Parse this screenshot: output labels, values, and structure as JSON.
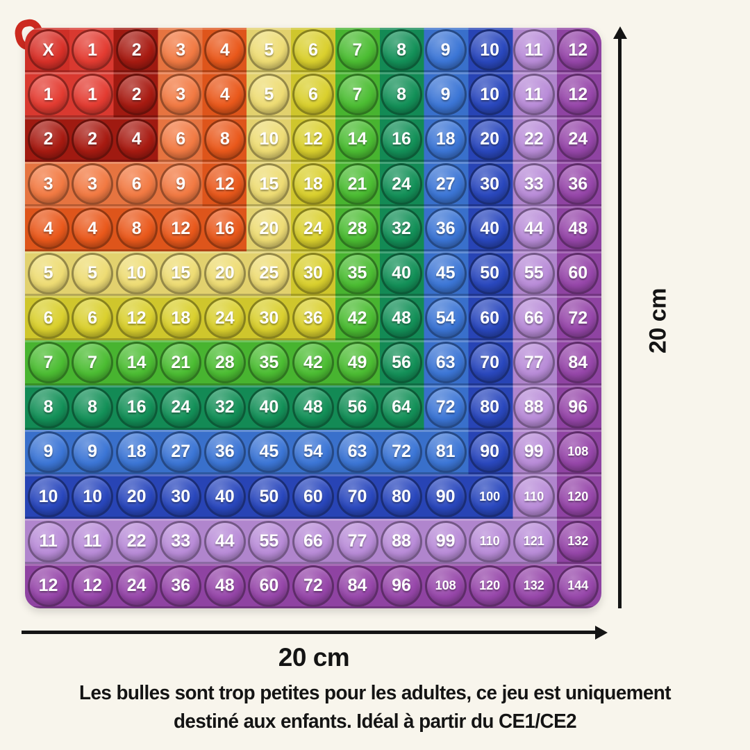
{
  "background_color": "#F8F5EC",
  "board": {
    "description": "rainbow pop-it multiplication table 12x12",
    "bubble_text_color": "#FFFFFF",
    "palette": [
      "#D93129",
      "#E43C32",
      "#A81B12",
      "#F27A43",
      "#EA591C",
      "#EEDC74",
      "#DAD02E",
      "#4CBD33",
      "#149159",
      "#3C76D6",
      "#2A48BE",
      "#B98CD8",
      "#9747AA"
    ],
    "cells": [
      [
        "X",
        "1",
        "2",
        "3",
        "4",
        "5",
        "6",
        "7",
        "8",
        "9",
        "10",
        "11",
        "12"
      ],
      [
        "1",
        "1",
        "2",
        "3",
        "4",
        "5",
        "6",
        "7",
        "8",
        "9",
        "10",
        "11",
        "12"
      ],
      [
        "2",
        "2",
        "4",
        "6",
        "8",
        "10",
        "12",
        "14",
        "16",
        "18",
        "20",
        "22",
        "24"
      ],
      [
        "3",
        "3",
        "6",
        "9",
        "12",
        "15",
        "18",
        "21",
        "24",
        "27",
        "30",
        "33",
        "36"
      ],
      [
        "4",
        "4",
        "8",
        "12",
        "16",
        "20",
        "24",
        "28",
        "32",
        "36",
        "40",
        "44",
        "48"
      ],
      [
        "5",
        "5",
        "10",
        "15",
        "20",
        "25",
        "30",
        "35",
        "40",
        "45",
        "50",
        "55",
        "60"
      ],
      [
        "6",
        "6",
        "12",
        "18",
        "24",
        "30",
        "36",
        "42",
        "48",
        "54",
        "60",
        "66",
        "72"
      ],
      [
        "7",
        "7",
        "14",
        "21",
        "28",
        "35",
        "42",
        "49",
        "56",
        "63",
        "70",
        "77",
        "84"
      ],
      [
        "8",
        "8",
        "16",
        "24",
        "32",
        "40",
        "48",
        "56",
        "64",
        "72",
        "80",
        "88",
        "96"
      ],
      [
        "9",
        "9",
        "18",
        "27",
        "36",
        "45",
        "54",
        "63",
        "72",
        "81",
        "90",
        "99",
        "108"
      ],
      [
        "10",
        "10",
        "20",
        "30",
        "40",
        "50",
        "60",
        "70",
        "80",
        "90",
        "100",
        "110",
        "120"
      ],
      [
        "11",
        "11",
        "22",
        "33",
        "44",
        "55",
        "66",
        "77",
        "88",
        "99",
        "110",
        "121",
        "132"
      ],
      [
        "12",
        "12",
        "24",
        "36",
        "48",
        "60",
        "72",
        "84",
        "96",
        "108",
        "120",
        "132",
        "144"
      ]
    ]
  },
  "hook_color": "#CC2A1F",
  "dimensions": {
    "arrow_color": "#141414",
    "height_label": "20 cm",
    "width_label": "20 cm"
  },
  "caption": {
    "color": "#141414",
    "line1": "Les bulles sont trop petites pour les adultes, ce jeu est uniquement",
    "line2": "destiné aux enfants. Idéal à partir du CE1/CE2"
  }
}
